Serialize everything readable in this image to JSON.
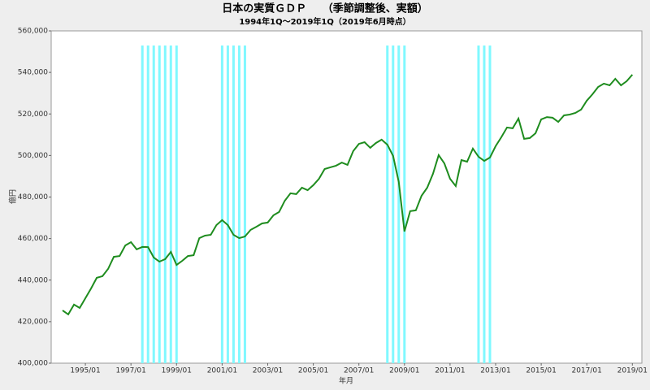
{
  "chart_data": {
    "type": "line",
    "title": "日本の実質ＧＤＰ　　（季節調整後、実額）",
    "subtitle": "1994年1Q～2019年1Q（2019年6月時点）",
    "y_label": "億円",
    "x_label": "年月",
    "x": [
      "1994/01",
      "1994/04",
      "1994/07",
      "1994/10",
      "1995/01",
      "1995/04",
      "1995/07",
      "1995/10",
      "1996/01",
      "1996/04",
      "1996/07",
      "1996/10",
      "1997/01",
      "1997/04",
      "1997/07",
      "1997/10",
      "1998/01",
      "1998/04",
      "1998/07",
      "1998/10",
      "1999/01",
      "1999/04",
      "1999/07",
      "1999/10",
      "2000/01",
      "2000/04",
      "2000/07",
      "2000/10",
      "2001/01",
      "2001/04",
      "2001/07",
      "2001/10",
      "2002/01",
      "2002/04",
      "2002/07",
      "2002/10",
      "2003/01",
      "2003/04",
      "2003/07",
      "2003/10",
      "2004/01",
      "2004/04",
      "2004/07",
      "2004/10",
      "2005/01",
      "2005/04",
      "2005/07",
      "2005/10",
      "2006/01",
      "2006/04",
      "2006/07",
      "2006/10",
      "2007/01",
      "2007/04",
      "2007/07",
      "2007/10",
      "2008/01",
      "2008/04",
      "2008/07",
      "2008/10",
      "2009/01",
      "2009/04",
      "2009/07",
      "2009/10",
      "2010/01",
      "2010/04",
      "2010/07",
      "2010/10",
      "2011/01",
      "2011/04",
      "2011/07",
      "2011/10",
      "2012/01",
      "2012/04",
      "2012/07",
      "2012/10",
      "2013/01",
      "2013/04",
      "2013/07",
      "2013/10",
      "2014/01",
      "2014/04",
      "2014/07",
      "2014/10",
      "2015/01",
      "2015/04",
      "2015/07",
      "2015/10",
      "2016/01",
      "2016/04",
      "2016/07",
      "2016/10",
      "2017/01",
      "2017/04",
      "2017/07",
      "2017/10",
      "2018/01",
      "2018/04",
      "2018/07",
      "2018/10",
      "2019/01"
    ],
    "series": [
      {
        "color": "#1e8c1e",
        "values": [
          425400,
          423500,
          428200,
          426600,
          431300,
          436000,
          441100,
          441900,
          445400,
          451200,
          451600,
          456700,
          458300,
          454800,
          456000,
          455900,
          450900,
          448900,
          450100,
          453600,
          447300,
          449300,
          451600,
          452000,
          460200,
          461400,
          461800,
          466500,
          468900,
          466500,
          461800,
          460200,
          461000,
          464200,
          465700,
          467300,
          467700,
          471200,
          472800,
          478200,
          481800,
          481400,
          484500,
          483300,
          485700,
          488800,
          493500,
          494300,
          495100,
          496600,
          495500,
          502100,
          505600,
          506400,
          503700,
          506000,
          507600,
          505200,
          499800,
          487200,
          463400,
          473200,
          473600,
          480600,
          484500,
          491200,
          500200,
          496200,
          488800,
          485300,
          497800,
          497000,
          503300,
          499400,
          497400,
          499000,
          504500,
          508800,
          513500,
          513100,
          517800,
          508000,
          508400,
          510700,
          517400,
          518500,
          518200,
          516200,
          519300,
          519700,
          520500,
          522100,
          526400,
          529500,
          533000,
          534600,
          533800,
          536900,
          533800,
          535800,
          538900
        ]
      }
    ],
    "shaded_periods": [
      {
        "from": "1997/07",
        "to": "1999/01"
      },
      {
        "from": "2001/01",
        "to": "2002/01"
      },
      {
        "from": "2008/04",
        "to": "2009/01"
      },
      {
        "from": "2012/04",
        "to": "2012/10"
      }
    ],
    "shade_color": "#80f8ff",
    "xlim": [
      "1993/07",
      "2019/06"
    ],
    "xticks": [
      "1995/01",
      "1997/01",
      "1999/01",
      "2001/01",
      "2003/01",
      "2005/01",
      "2007/01",
      "2009/01",
      "2011/01",
      "2013/01",
      "2015/01",
      "2017/01",
      "2019/01"
    ],
    "ylim": [
      400000,
      560000
    ],
    "yticks": [
      {
        "value": 400000,
        "label": "400,000"
      },
      {
        "value": 420000,
        "label": "420,000"
      },
      {
        "value": 440000,
        "label": "440,000"
      },
      {
        "value": 460000,
        "label": "460,000"
      },
      {
        "value": 480000,
        "label": "480,000"
      },
      {
        "value": 500000,
        "label": "500,000"
      },
      {
        "value": 520000,
        "label": "520,000"
      },
      {
        "value": 540000,
        "label": "540,000"
      },
      {
        "value": 560000,
        "label": "560,000"
      }
    ]
  }
}
